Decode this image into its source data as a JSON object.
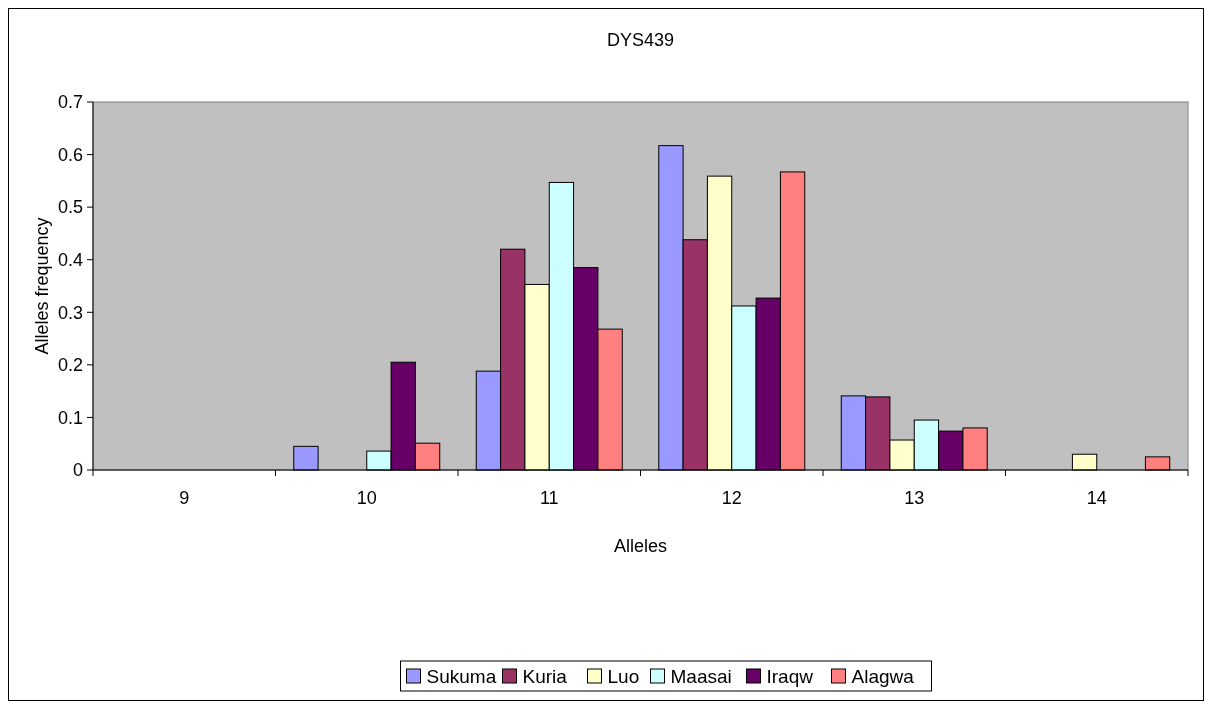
{
  "chart_data": {
    "type": "bar",
    "title": "DYS439",
    "xlabel": "Alleles",
    "ylabel": "Alleles frequency",
    "categories": [
      "9",
      "10",
      "11",
      "12",
      "13",
      "14"
    ],
    "series": [
      {
        "name": "Sukuma",
        "color": "#9999ff",
        "values": [
          0,
          0.045,
          0.188,
          0.617,
          0.141,
          0
        ]
      },
      {
        "name": "Kuria",
        "color": "#993366",
        "values": [
          0,
          0,
          0.42,
          0.438,
          0.139,
          0
        ]
      },
      {
        "name": "Luo",
        "color": "#ffffcc",
        "values": [
          0,
          0,
          0.353,
          0.559,
          0.057,
          0.03
        ]
      },
      {
        "name": "Maasai",
        "color": "#ccffff",
        "values": [
          0,
          0.036,
          0.547,
          0.312,
          0.095,
          0
        ]
      },
      {
        "name": "Iraqw",
        "color": "#660066",
        "values": [
          0,
          0.205,
          0.385,
          0.327,
          0.074,
          0
        ]
      },
      {
        "name": "Alagwa",
        "color": "#ff8080",
        "values": [
          0,
          0.051,
          0.268,
          0.567,
          0.08,
          0.025
        ]
      }
    ],
    "ylim": [
      0,
      0.7
    ],
    "yticks": [
      0,
      0.1,
      0.2,
      0.3,
      0.4,
      0.5,
      0.6,
      0.7
    ],
    "grid": false,
    "legend": "bottom"
  }
}
